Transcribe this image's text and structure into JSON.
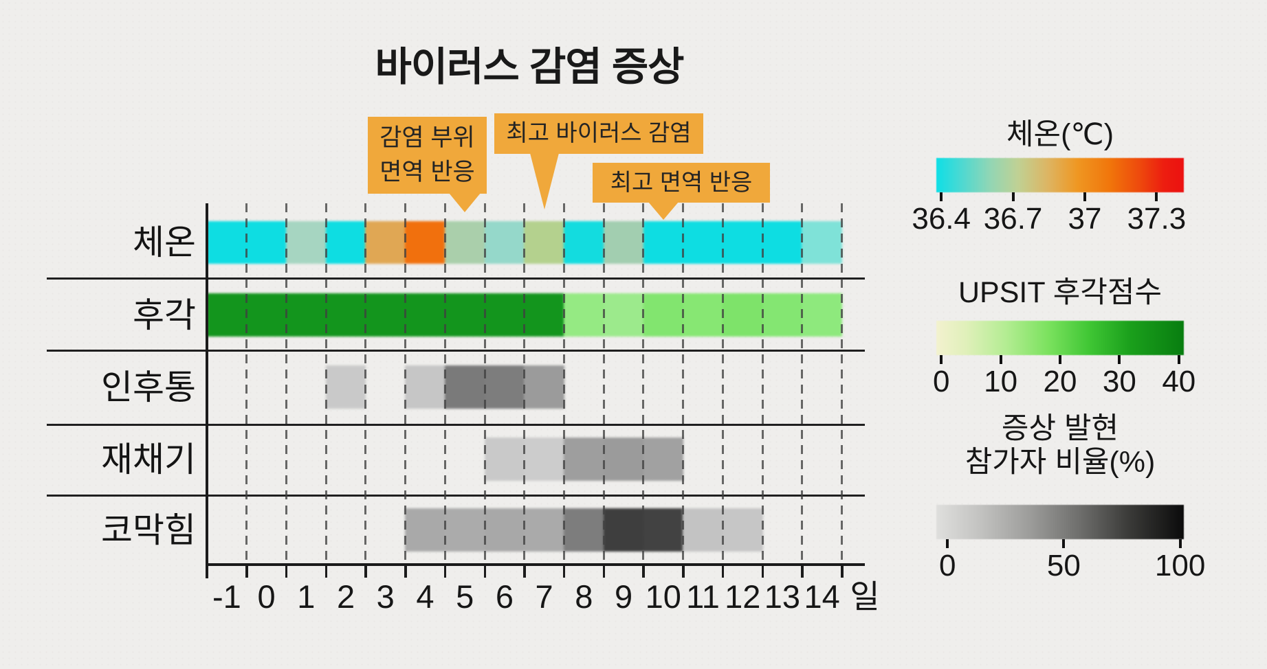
{
  "chart_data": {
    "type": "heatmap",
    "title": "바이러스 감염 증상",
    "x": [
      -1,
      0,
      1,
      2,
      3,
      4,
      5,
      6,
      7,
      8,
      9,
      10,
      11,
      12,
      13,
      14
    ],
    "x_tick_labels": [
      "-1",
      "0",
      "1",
      "2",
      "3",
      "4",
      "5",
      "6",
      "7",
      "8",
      "9",
      "10",
      "11",
      "12",
      "13",
      "14"
    ],
    "x_unit": "일",
    "rows": [
      {
        "label": "체온",
        "scale": "temperature_c",
        "values": [
          36.4,
          36.4,
          36.65,
          36.4,
          36.9,
          37.1,
          36.65,
          36.6,
          36.75,
          36.45,
          36.65,
          36.4,
          36.4,
          36.4,
          36.4,
          36.45
        ],
        "colors": [
          "#0edde2",
          "#0edde2",
          "#a6d5c1",
          "#0edde2",
          "#e0a754",
          "#f1700d",
          "#aacfab",
          "#95d8ca",
          "#b4d18e",
          "#13dcdf",
          "#a2ceb0",
          "#0edde2",
          "#0edde2",
          "#0edde2",
          "#0edde2",
          "#7fe2d8"
        ]
      },
      {
        "label": "후각",
        "scale": "upsit_score",
        "values": [
          38,
          38,
          38,
          38,
          38,
          38,
          38,
          38,
          38,
          15,
          15,
          16,
          16,
          16,
          16,
          15
        ],
        "colors": [
          "#13951d",
          "#13951d",
          "#13951d",
          "#13951d",
          "#13951d",
          "#13951d",
          "#13951d",
          "#13951d",
          "#13951d",
          "#95ea83",
          "#9cea8c",
          "#82e56f",
          "#87e773",
          "#7ee36a",
          "#84e672",
          "#8ee97d"
        ]
      },
      {
        "label": "인후통",
        "scale": "percent_participants",
        "values": [
          null,
          null,
          null,
          20,
          null,
          22,
          55,
          55,
          40,
          null,
          null,
          null,
          null,
          null,
          null,
          null
        ],
        "colors": [
          null,
          null,
          null,
          "#c9c9c9",
          null,
          "#c6c6c6",
          "#7a7a7a",
          "#7d7d7d",
          "#9b9b9b",
          null,
          null,
          null,
          null,
          null,
          null,
          null
        ]
      },
      {
        "label": "재채기",
        "scale": "percent_participants",
        "values": [
          null,
          null,
          null,
          null,
          null,
          null,
          null,
          20,
          20,
          40,
          40,
          40,
          null,
          null,
          null,
          null
        ],
        "colors": [
          null,
          null,
          null,
          null,
          null,
          null,
          null,
          "#c9c9c9",
          "#cccccc",
          "#9e9e9e",
          "#9b9b9b",
          "#a1a1a1",
          null,
          null,
          null,
          null
        ]
      },
      {
        "label": "코막힘",
        "scale": "percent_participants",
        "values": [
          null,
          null,
          null,
          null,
          null,
          33,
          33,
          33,
          33,
          50,
          85,
          85,
          22,
          22,
          null,
          null
        ],
        "colors": [
          null,
          null,
          null,
          null,
          null,
          "#a9a9a9",
          "#ababab",
          "#a8a8a8",
          "#aaaaaa",
          "#7d7d7d",
          "#3e3e3e",
          "#424242",
          "#c3c3c3",
          "#c6c6c6",
          null,
          null
        ]
      }
    ],
    "annotations": [
      {
        "lines": [
          "감염 부위",
          "면역 반응"
        ],
        "points_to_day": 5
      },
      {
        "lines": [
          "최고 바이러스 감염"
        ],
        "points_to_day": 7
      },
      {
        "lines": [
          "최고 면역 반응"
        ],
        "points_to_day": 10
      }
    ],
    "legends": [
      {
        "title_lines": [
          "체온(℃)"
        ],
        "tick_labels": [
          "36.4",
          "36.7",
          "37",
          "37.3"
        ],
        "tick_pos": [
          0.02,
          0.31,
          0.6,
          0.89
        ],
        "gradient_stops": [
          [
            "#0edfe6",
            0
          ],
          [
            "#4cd9d2",
            0.1
          ],
          [
            "#93d6b4",
            0.22
          ],
          [
            "#c0d194",
            0.33
          ],
          [
            "#ddb563",
            0.45
          ],
          [
            "#ef9722",
            0.57
          ],
          [
            "#f1760b",
            0.7
          ],
          [
            "#ee4a0d",
            0.82
          ],
          [
            "#ed1d10",
            0.92
          ],
          [
            "#ec1111",
            1
          ]
        ]
      },
      {
        "title_lines": [
          "UPSIT 후각점수"
        ],
        "tick_labels": [
          "0",
          "10",
          "20",
          "30",
          "40"
        ],
        "tick_pos": [
          0.02,
          0.26,
          0.5,
          0.74,
          0.98
        ],
        "gradient_stops": [
          [
            "#f3f2cf",
            0
          ],
          [
            "#e0f0ba",
            0.12
          ],
          [
            "#b4ed93",
            0.28
          ],
          [
            "#7ce25f",
            0.45
          ],
          [
            "#3fc634",
            0.62
          ],
          [
            "#1ba01c",
            0.78
          ],
          [
            "#087d10",
            1
          ]
        ]
      },
      {
        "title_lines": [
          "증상 발현",
          "참가자 비율(%)"
        ],
        "tick_labels": [
          "0",
          "50",
          "100"
        ],
        "tick_pos": [
          0.045,
          0.515,
          0.985
        ],
        "gradient_stops": [
          [
            "#dfdfdd",
            0
          ],
          [
            "#c2c2c0",
            0.18
          ],
          [
            "#9c9c9a",
            0.38
          ],
          [
            "#6e6e6c",
            0.58
          ],
          [
            "#3a3a38",
            0.78
          ],
          [
            "#0b0b0b",
            1
          ]
        ]
      }
    ],
    "colors": {
      "annotation_bg": "#f0a83b",
      "axis": "#1b1b1b",
      "grid_dash": "#3f3f3f",
      "background": "#efeeec"
    }
  }
}
